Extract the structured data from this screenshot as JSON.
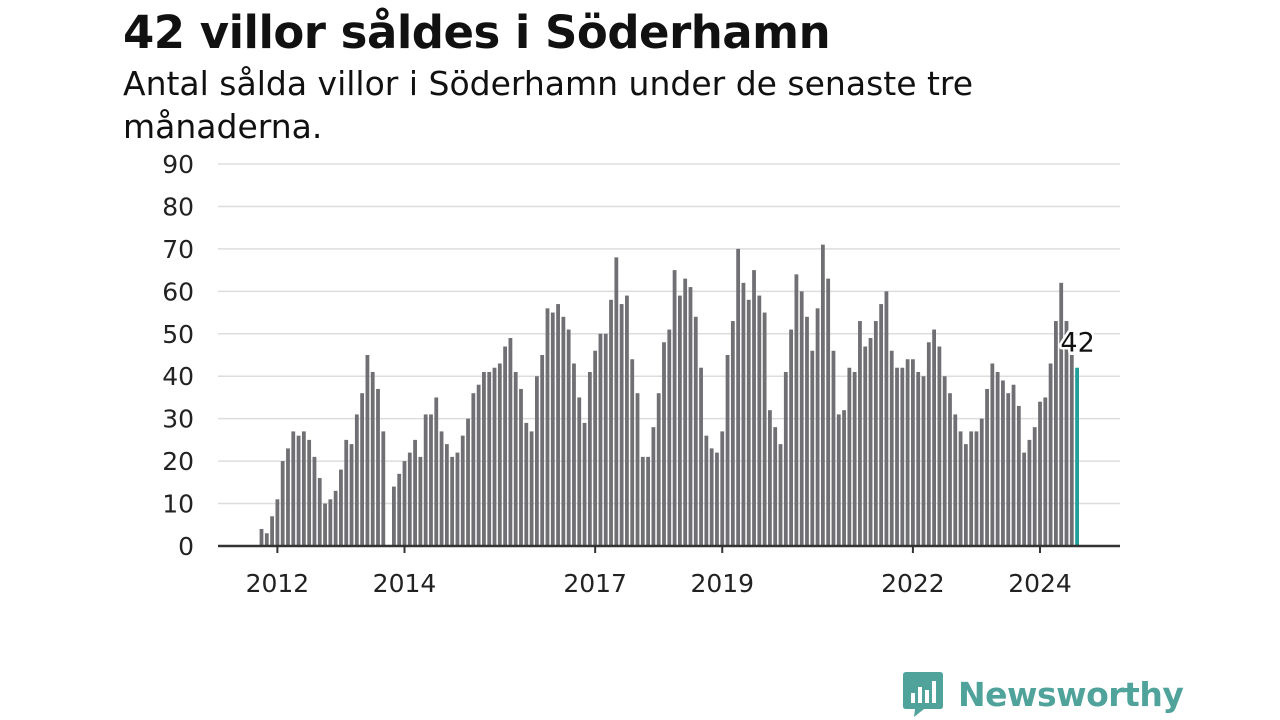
{
  "title": "42 villor såldes i Söderhamn",
  "subtitle": "Antal sålda villor i Söderhamn under de senaste tre månaderna.",
  "brand": {
    "name": "Newsworthy",
    "color": "#4fa39a",
    "icon": "newsworthy-chart-bubble-icon"
  },
  "colors": {
    "bar": "#707074",
    "highlight": "#1f9e9a",
    "grid": "#dddddd",
    "axis": "#333333"
  },
  "chart_data": {
    "type": "bar",
    "title": "42 villor såldes i Söderhamn",
    "subtitle": "Antal sålda villor i Söderhamn under de senaste tre månaderna.",
    "xlabel": "",
    "ylabel": "",
    "ylim": [
      0,
      90
    ],
    "yticks": [
      0,
      10,
      20,
      30,
      40,
      50,
      60,
      70,
      80,
      90
    ],
    "xticks": [
      "2012",
      "2014",
      "2017",
      "2019",
      "2022",
      "2024"
    ],
    "grid": true,
    "start": "2011-10",
    "values": [
      4,
      3,
      7,
      11,
      20,
      23,
      27,
      26,
      27,
      25,
      21,
      16,
      10,
      11,
      13,
      18,
      25,
      24,
      31,
      36,
      45,
      41,
      37,
      27,
      0,
      14,
      17,
      20,
      22,
      25,
      21,
      31,
      31,
      35,
      27,
      24,
      21,
      22,
      26,
      30,
      36,
      38,
      41,
      41,
      42,
      43,
      47,
      49,
      41,
      37,
      29,
      27,
      40,
      45,
      56,
      55,
      57,
      54,
      51,
      43,
      35,
      29,
      41,
      46,
      50,
      50,
      58,
      68,
      57,
      59,
      44,
      36,
      21,
      21,
      28,
      36,
      48,
      51,
      65,
      59,
      63,
      61,
      54,
      42,
      26,
      23,
      22,
      27,
      45,
      53,
      70,
      62,
      58,
      65,
      59,
      55,
      32,
      28,
      24,
      41,
      51,
      64,
      60,
      54,
      46,
      56,
      71,
      63,
      46,
      31,
      32,
      42,
      41,
      53,
      47,
      49,
      53,
      57,
      60,
      46,
      42,
      42,
      44,
      44,
      41,
      40,
      48,
      51,
      47,
      40,
      36,
      31,
      27,
      24,
      27,
      27,
      30,
      37,
      43,
      41,
      39,
      36,
      38,
      33,
      22,
      25,
      28,
      34,
      35,
      43,
      53,
      62,
      53,
      45,
      42
    ],
    "highlight_index": 154,
    "highlight_label": "42"
  }
}
